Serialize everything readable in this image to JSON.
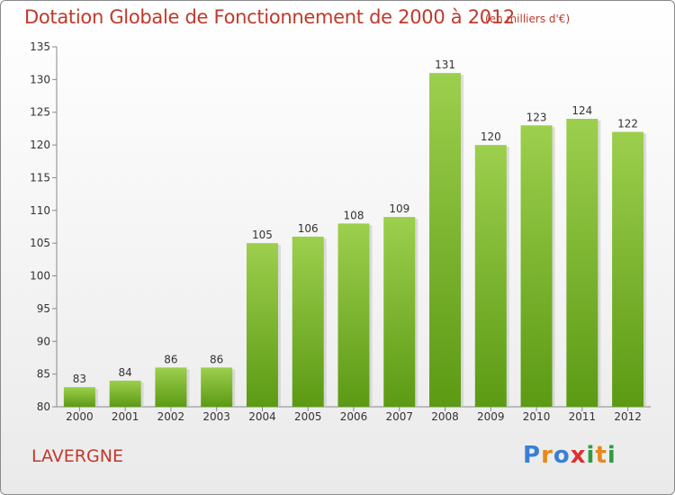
{
  "header": {
    "title": "Dotation Globale de Fonctionnement de 2000 à 2012",
    "subtitle": "(en milliers d'€)"
  },
  "footer": {
    "commune": "LAVERGNE",
    "logo_text": "Proxiti"
  },
  "colors": {
    "bar_top": "#9ccf4d",
    "bar_bottom": "#5c9a14",
    "title": "#c0392b",
    "logo": [
      "#3a7fd5",
      "#e8881a",
      "#3a7fd5",
      "#e03030",
      "#2e9e3e",
      "#e8881a",
      "#2e9e3e"
    ]
  },
  "chart_data": {
    "type": "bar",
    "title": "Dotation Globale de Fonctionnement de 2000 à 2012",
    "categories": [
      "2000",
      "2001",
      "2002",
      "2003",
      "2004",
      "2005",
      "2006",
      "2007",
      "2008",
      "2009",
      "2010",
      "2011",
      "2012"
    ],
    "values": [
      83,
      84,
      86,
      86,
      105,
      106,
      108,
      109,
      131,
      120,
      123,
      124,
      122
    ],
    "ylim": [
      80,
      135
    ],
    "yticks": [
      80,
      85,
      90,
      95,
      100,
      105,
      110,
      115,
      120,
      125,
      130,
      135
    ],
    "grid": false,
    "show_value_labels": true
  }
}
